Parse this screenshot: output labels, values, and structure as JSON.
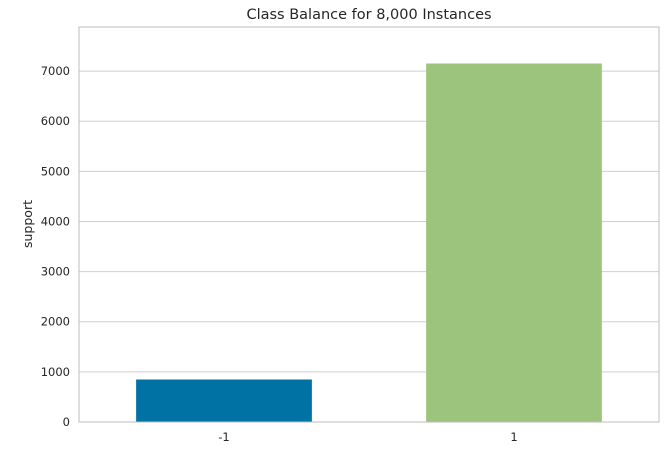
{
  "chart_data": {
    "type": "bar",
    "title": "Class Balance for 8,000 Instances",
    "xlabel": "",
    "ylabel": "support",
    "categories": [
      "-1",
      "1"
    ],
    "values": [
      848,
      7152
    ],
    "colors": [
      "#0072a3",
      "#9dc47c"
    ],
    "ylim": [
      0,
      7880
    ],
    "yticks": [
      0,
      1000,
      2000,
      3000,
      4000,
      5000,
      6000,
      7000
    ],
    "ytick_labels": [
      "0",
      "1000",
      "2000",
      "3000",
      "4000",
      "5000",
      "6000",
      "7000"
    ],
    "grid": true,
    "legend": "none"
  }
}
